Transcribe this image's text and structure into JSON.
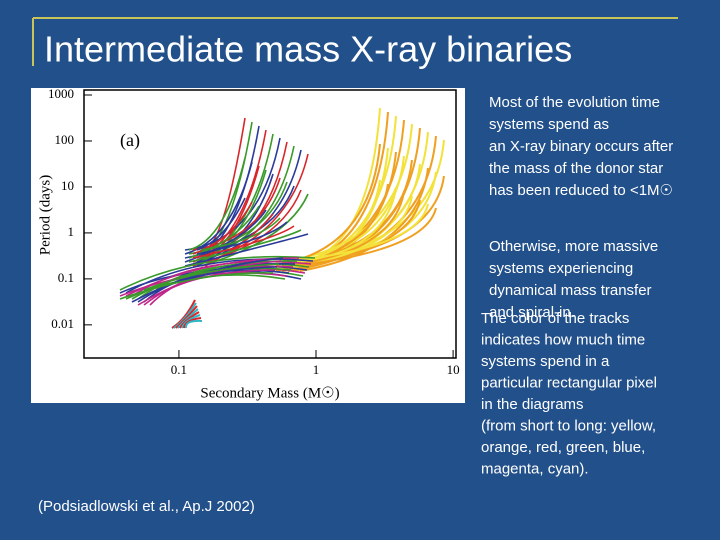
{
  "title": "Intermediate mass X-ray binaries",
  "figure": {
    "panel_label": "(a)",
    "y_axis_label": "Period (days)",
    "x_axis_label": "Secondary Mass (M☉)",
    "log": true,
    "xlim": [
      0.0203,
      10.5
    ],
    "ylim": [
      0.0019,
      1285
    ],
    "xticks": [
      0.1,
      1,
      10
    ],
    "yticks": [
      1000,
      100,
      10,
      1,
      0.1,
      0.01
    ]
  },
  "notes": [
    [
      "Most of the evolution time",
      "systems spend as",
      "an X-ray binary occurs after",
      "the mass of the donor star",
      "has been reduced to <1M☉"
    ],
    [
      "Otherwise, more massive",
      "systems experiencing",
      "dynamical mass transfer",
      "and spiral-in."
    ],
    [
      "The color of the tracks",
      "indicates how much time",
      "systems spend in a",
      "particular rectangular pixel",
      "in the diagrams",
      "(from short to long: yellow,",
      "orange, red, green, blue,",
      "magenta, cyan)."
    ]
  ],
  "citation": "(Podsiadlowski et al., Ap.J 2002)"
}
